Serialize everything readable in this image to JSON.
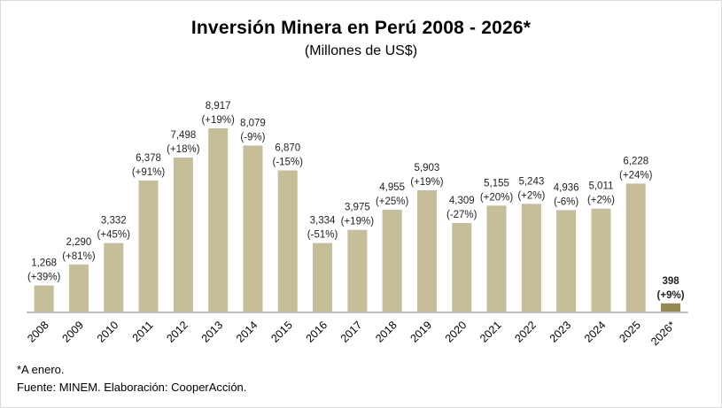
{
  "chart_data": {
    "type": "bar",
    "title": "Inversión Minera en Perú 2008 - 2026*",
    "subtitle": "(Millones de US$)",
    "xlabel": "",
    "ylabel": "",
    "ylim": [
      0,
      9500
    ],
    "grid": false,
    "legend": "none",
    "categories": [
      "2008",
      "2009",
      "2010",
      "2011",
      "2012",
      "2013",
      "2014",
      "2015",
      "2016",
      "2017",
      "2018",
      "2019",
      "2020",
      "2021",
      "2022",
      "2023",
      "2024",
      "2025",
      "2026*"
    ],
    "values": [
      1268,
      2290,
      3332,
      6378,
      7498,
      8917,
      8079,
      6870,
      3334,
      3975,
      4955,
      5903,
      4309,
      5155,
      5243,
      4936,
      5011,
      6228,
      398
    ],
    "value_labels": [
      "1,268",
      "2,290",
      "3,332",
      "6,378",
      "7,498",
      "8,917",
      "8,079",
      "6,870",
      "3,334",
      "3,975",
      "4,955",
      "5,903",
      "4,309",
      "5,155",
      "5,243",
      "4,936",
      "5,011",
      "6,228",
      "398"
    ],
    "change_labels": [
      "(+39%)",
      "(+81%)",
      "(+45%)",
      "(+91%)",
      "(+18%)",
      "(+19%)",
      "(-9%)",
      "(-15%)",
      "(-51%)",
      "(+19%)",
      "(+25%)",
      "(+19%)",
      "(-27%)",
      "(+20%)",
      "(+2%)",
      "(-6%)",
      "(+2%)",
      "(+24%)",
      "(+9%)"
    ],
    "highlight_last": true,
    "colors": {
      "bar": "#c6bd99",
      "highlight": "#948a54",
      "axis": "#bfbfbf"
    }
  },
  "notes": {
    "footnote": "*A enero.",
    "source": "Fuente: MINEM. Elaboración: CooperAcción."
  }
}
